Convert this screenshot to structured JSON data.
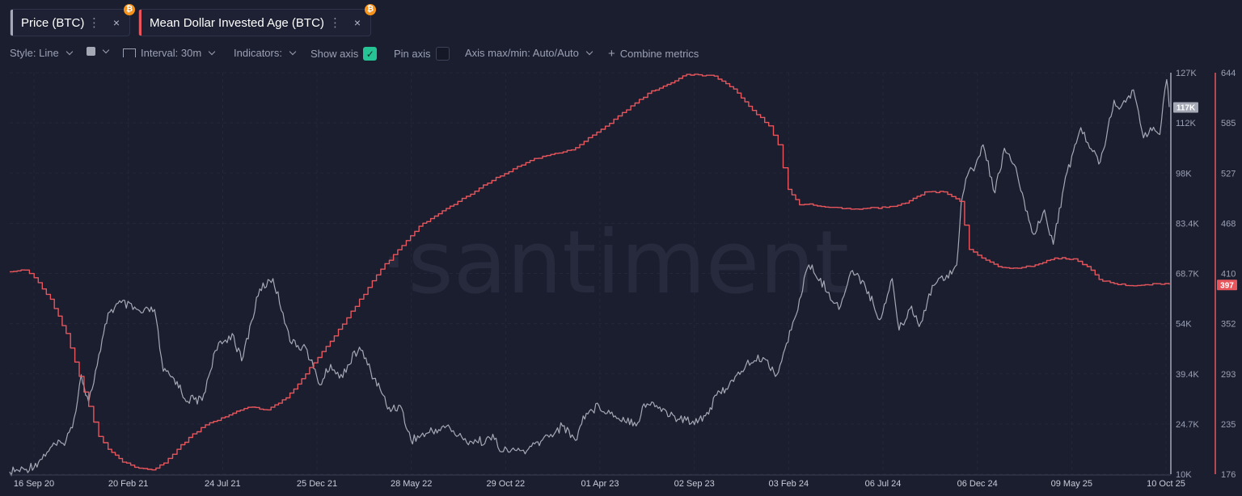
{
  "metrics": [
    {
      "label": "Price (BTC)",
      "color": "#a5a9b6",
      "dots": "⋮",
      "close": "×",
      "badge": "₿"
    },
    {
      "label": "Mean Dollar Invested Age (BTC)",
      "color": "#e8565d",
      "dots": "⋮",
      "close": "×",
      "badge": "₿"
    }
  ],
  "toolbar": {
    "style": "Style: Line",
    "interval": "Interval: 30m",
    "indicators": "Indicators:",
    "show_axis": "Show axis",
    "show_axis_checked": true,
    "pin_axis": "Pin axis",
    "pin_axis_checked": false,
    "axis_maxmin": "Axis max/min: Auto/Auto",
    "combine_prefix": "+",
    "combine": "Combine metrics"
  },
  "watermark": "·santiment",
  "chart_data": {
    "type": "line",
    "x_tick_labels": [
      "16 Sep 20",
      "20 Feb 21",
      "24 Jul 21",
      "25 Dec 21",
      "28 May 22",
      "29 Oct 22",
      "01 Apr 23",
      "02 Sep 23",
      "03 Feb 24",
      "06 Jul 24",
      "06 Dec 24",
      "09 May 25",
      "10 Oct 25"
    ],
    "left_axis": {
      "tick_labels": [
        "127K",
        "112K",
        "98K",
        "83.4K",
        "68.7K",
        "54K",
        "39.4K",
        "24.7K",
        "10K"
      ],
      "ylim": [
        10000,
        127000
      ],
      "current_label": "117K",
      "color": "#a5a9b6"
    },
    "right_axis": {
      "tick_labels": [
        "644",
        "585",
        "527",
        "468",
        "410",
        "352",
        "293",
        "235",
        "176"
      ],
      "ylim": [
        176,
        644
      ],
      "current_label": "397",
      "color": "#e8565d"
    },
    "series": [
      {
        "name": "Price (BTC)",
        "color": "#a5a9b6",
        "axis": "left",
        "x": [
          "2020-09-16",
          "2020-10-10",
          "2020-11-01",
          "2020-11-20",
          "2020-12-10",
          "2020-12-25",
          "2021-01-08",
          "2021-01-20",
          "2021-02-08",
          "2021-02-20",
          "2021-03-13",
          "2021-04-14",
          "2021-05-05",
          "2021-05-19",
          "2021-06-10",
          "2021-06-22",
          "2021-07-20",
          "2021-08-10",
          "2021-09-06",
          "2021-09-21",
          "2021-10-20",
          "2021-11-10",
          "2021-11-26",
          "2021-12-10",
          "2022-01-01",
          "2022-01-24",
          "2022-02-10",
          "2022-02-24",
          "2022-03-28",
          "2022-04-15",
          "2022-05-05",
          "2022-05-12",
          "2022-06-01",
          "2022-06-18",
          "2022-07-15",
          "2022-08-14",
          "2022-09-10",
          "2022-10-01",
          "2022-11-01",
          "2022-11-10",
          "2022-12-01",
          "2022-12-20",
          "2023-01-14",
          "2023-02-15",
          "2023-03-10",
          "2023-03-20",
          "2023-04-14",
          "2023-05-10",
          "2023-06-15",
          "2023-06-25",
          "2023-07-15",
          "2023-08-18",
          "2023-09-11",
          "2023-10-01",
          "2023-10-24",
          "2023-11-15",
          "2023-12-05",
          "2024-01-01",
          "2024-01-23",
          "2024-02-15",
          "2024-02-28",
          "2024-03-14",
          "2024-04-15",
          "2024-05-01",
          "2024-05-20",
          "2024-06-10",
          "2024-07-05",
          "2024-07-25",
          "2024-08-05",
          "2024-08-25",
          "2024-09-06",
          "2024-09-27",
          "2024-10-20",
          "2024-11-05",
          "2024-11-12",
          "2024-11-22",
          "2024-12-05",
          "2024-12-17",
          "2025-01-05",
          "2025-01-20",
          "2025-02-10",
          "2025-02-28",
          "2025-03-10",
          "2025-03-25",
          "2025-04-08",
          "2025-04-25",
          "2025-05-10",
          "2025-05-22",
          "2025-06-05",
          "2025-06-22",
          "2025-07-14",
          "2025-07-25",
          "2025-08-14",
          "2025-08-30",
          "2025-09-10",
          "2025-09-25",
          "2025-10-06",
          "2025-10-10"
        ],
        "y": [
          10700,
          11300,
          13500,
          17800,
          19000,
          23500,
          39000,
          31000,
          46000,
          57000,
          60000,
          57000,
          58000,
          40000,
          37000,
          32000,
          31500,
          46000,
          51000,
          43000,
          64000,
          67000,
          57000,
          48000,
          47000,
          36000,
          42000,
          38000,
          47000,
          40000,
          33000,
          29000,
          30000,
          20000,
          22000,
          24000,
          20000,
          19500,
          20500,
          16500,
          17000,
          16800,
          20000,
          24000,
          20000,
          27000,
          30000,
          27000,
          25000,
          30500,
          30000,
          26000,
          25500,
          27000,
          34000,
          37000,
          42000,
          44000,
          39000,
          52000,
          61000,
          71000,
          63000,
          58000,
          69000,
          66000,
          55000,
          67000,
          52000,
          59000,
          53000,
          65000,
          68000,
          71000,
          89000,
          97000,
          100000,
          106000,
          92000,
          105000,
          97000,
          84000,
          80000,
          87000,
          77000,
          94000,
          104000,
          111000,
          105000,
          101000,
          119000,
          117000,
          122000,
          108000,
          111000,
          109000,
          125000,
          117000
        ]
      },
      {
        "name": "Mean Dollar Invested Age (BTC)",
        "color": "#e8565d",
        "axis": "right",
        "x": [
          "2020-09-16",
          "2020-10-10",
          "2020-10-25",
          "2020-11-20",
          "2020-12-15",
          "2021-01-05",
          "2021-01-20",
          "2021-02-05",
          "2021-02-20",
          "2021-03-15",
          "2021-04-10",
          "2021-05-01",
          "2021-05-20",
          "2021-06-10",
          "2021-07-05",
          "2021-08-01",
          "2021-09-01",
          "2021-10-01",
          "2021-11-01",
          "2021-12-01",
          "2022-01-01",
          "2022-03-01",
          "2022-05-01",
          "2022-07-01",
          "2022-09-01",
          "2022-11-01",
          "2023-01-01",
          "2023-03-01",
          "2023-05-01",
          "2023-07-01",
          "2023-09-01",
          "2023-10-15",
          "2023-11-15",
          "2023-12-15",
          "2024-01-10",
          "2024-01-25",
          "2024-02-10",
          "2024-02-28",
          "2024-03-15",
          "2024-04-15",
          "2024-05-20",
          "2024-06-15",
          "2024-07-15",
          "2024-08-15",
          "2024-09-15",
          "2024-10-15",
          "2024-11-10",
          "2024-11-25",
          "2024-12-15",
          "2025-01-10",
          "2025-02-10",
          "2025-03-10",
          "2025-04-10",
          "2025-05-10",
          "2025-06-01",
          "2025-06-20",
          "2025-07-20",
          "2025-08-20",
          "2025-09-20",
          "2025-10-10"
        ],
        "y": [
          412,
          414,
          405,
          380,
          340,
          290,
          255,
          220,
          205,
          190,
          183,
          181,
          189,
          205,
          223,
          236,
          245,
          254,
          251,
          265,
          293,
          351,
          415,
          465,
          494,
          522,
          544,
          554,
          585,
          620,
          642,
          640,
          625,
          600,
          582,
          560,
          508,
          490,
          491,
          487,
          485,
          486,
          487,
          492,
          505,
          505,
          494,
          438,
          428,
          418,
          416,
          420,
          428,
          427,
          418,
          403,
          397,
          396,
          398,
          397
        ]
      }
    ],
    "grid": true,
    "legend": "top-left"
  }
}
